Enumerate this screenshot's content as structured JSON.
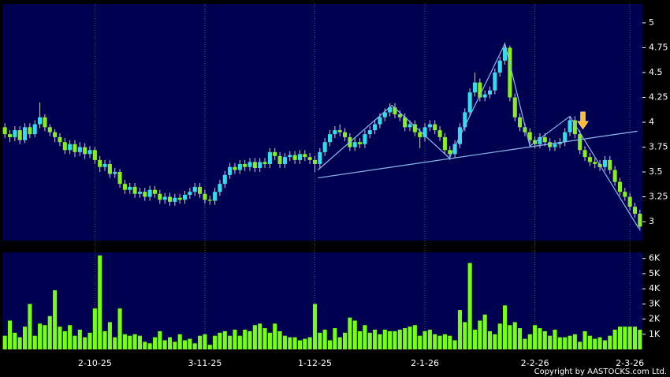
{
  "chart_data": [
    {
      "type": "candlestick",
      "categories": [
        null,
        null,
        null,
        null,
        null,
        null,
        null,
        null,
        null,
        null,
        null,
        null,
        null,
        null,
        null,
        null,
        null,
        null,
        "2-10-25",
        null,
        null,
        null,
        null,
        null,
        null,
        null,
        null,
        null,
        null,
        null,
        null,
        null,
        null,
        null,
        null,
        null,
        null,
        null,
        null,
        null,
        "3-11-25",
        null,
        null,
        null,
        null,
        null,
        null,
        null,
        null,
        null,
        null,
        null,
        null,
        null,
        null,
        null,
        null,
        null,
        null,
        null,
        null,
        null,
        "1-12-25",
        null,
        null,
        null,
        null,
        null,
        null,
        null,
        null,
        null,
        null,
        null,
        null,
        null,
        null,
        null,
        null,
        null,
        null,
        null,
        null,
        null,
        "2-1-26",
        null,
        null,
        null,
        null,
        null,
        null,
        null,
        null,
        null,
        null,
        null,
        null,
        null,
        null,
        null,
        null,
        null,
        null,
        null,
        null,
        null,
        "2-2-26",
        null,
        null,
        null,
        null,
        null,
        null,
        null,
        null,
        null,
        null,
        null,
        null,
        null,
        null,
        null,
        null,
        null,
        null,
        "2-3-26",
        null,
        null
      ],
      "open": [
        3.95,
        3.88,
        3.85,
        3.92,
        3.82,
        3.95,
        3.88,
        3.98,
        4.05,
        3.95,
        3.9,
        3.85,
        3.8,
        3.72,
        3.78,
        3.7,
        3.75,
        3.68,
        3.72,
        3.62,
        3.55,
        3.58,
        3.48,
        3.5,
        3.38,
        3.32,
        3.35,
        3.28,
        3.3,
        3.25,
        3.32,
        3.28,
        3.22,
        3.25,
        3.2,
        3.24,
        3.22,
        3.27,
        3.3,
        3.35,
        3.28,
        3.22,
        3.21,
        3.3,
        3.38,
        3.47,
        3.55,
        3.52,
        3.58,
        3.55,
        3.6,
        3.54,
        3.6,
        3.58,
        3.7,
        3.66,
        3.58,
        3.65,
        3.67,
        3.62,
        3.68,
        3.65,
        3.62,
        3.58,
        3.7,
        3.8,
        3.88,
        3.92,
        3.9,
        3.85,
        3.75,
        3.8,
        3.78,
        3.88,
        3.92,
        3.98,
        4.05,
        4.1,
        4.15,
        4.08,
        4.05,
        3.95,
        3.98,
        3.9,
        3.85,
        3.95,
        3.98,
        3.92,
        3.85,
        3.72,
        3.68,
        3.78,
        3.95,
        4.1,
        4.3,
        4.4,
        4.25,
        4.28,
        4.32,
        4.5,
        4.62,
        4.75,
        4.25,
        4.05,
        3.95,
        3.9,
        3.82,
        3.78,
        3.85,
        3.8,
        3.75,
        3.78,
        3.8,
        3.9,
        4.02,
        3.88,
        3.72,
        3.65,
        3.6,
        3.58,
        3.55,
        3.62,
        3.52,
        3.4,
        3.3,
        3.25,
        3.15,
        3.08
      ],
      "high": [
        3.99,
        3.92,
        3.96,
        3.96,
        3.99,
        3.99,
        4.02,
        4.2,
        4.08,
        3.98,
        3.93,
        3.89,
        3.84,
        3.82,
        3.82,
        3.8,
        3.79,
        3.76,
        3.75,
        3.66,
        3.62,
        3.62,
        3.54,
        3.53,
        3.42,
        3.39,
        3.39,
        3.34,
        3.34,
        3.36,
        3.36,
        3.32,
        3.29,
        3.29,
        3.28,
        3.28,
        3.31,
        3.34,
        3.39,
        3.39,
        3.32,
        3.26,
        3.34,
        3.42,
        3.51,
        3.59,
        3.59,
        3.62,
        3.62,
        3.64,
        3.64,
        3.64,
        3.64,
        3.74,
        3.74,
        3.7,
        3.69,
        3.71,
        3.71,
        3.72,
        3.72,
        3.69,
        3.66,
        3.74,
        3.84,
        3.92,
        3.96,
        3.98,
        3.94,
        3.89,
        3.84,
        3.84,
        3.92,
        3.96,
        4.02,
        4.09,
        4.14,
        4.19,
        4.19,
        4.12,
        4.09,
        4.02,
        4.02,
        3.94,
        3.99,
        4.02,
        4.02,
        3.96,
        3.89,
        3.76,
        3.82,
        3.99,
        4.14,
        4.34,
        4.5,
        4.44,
        4.32,
        4.36,
        4.54,
        4.66,
        4.8,
        4.77,
        4.29,
        4.09,
        3.99,
        3.94,
        3.86,
        3.89,
        3.89,
        3.84,
        3.82,
        3.84,
        3.94,
        4.06,
        4.06,
        3.92,
        3.76,
        3.69,
        3.64,
        3.62,
        3.66,
        3.66,
        3.56,
        3.44,
        3.34,
        3.29,
        3.19,
        3.12
      ],
      "low": [
        3.84,
        3.8,
        3.81,
        3.78,
        3.79,
        3.84,
        3.85,
        3.94,
        3.91,
        3.86,
        3.8,
        3.76,
        3.68,
        3.68,
        3.65,
        3.66,
        3.63,
        3.64,
        3.58,
        3.5,
        3.51,
        3.44,
        3.44,
        3.34,
        3.28,
        3.28,
        3.24,
        3.24,
        3.21,
        3.21,
        3.24,
        3.18,
        3.18,
        3.16,
        3.16,
        3.18,
        3.18,
        3.23,
        3.26,
        3.24,
        3.18,
        3.17,
        3.17,
        3.26,
        3.34,
        3.43,
        3.48,
        3.48,
        3.51,
        3.51,
        3.5,
        3.5,
        3.54,
        3.54,
        3.62,
        3.54,
        3.54,
        3.61,
        3.58,
        3.58,
        3.61,
        3.58,
        3.5,
        3.54,
        3.66,
        3.76,
        3.84,
        3.86,
        3.81,
        3.71,
        3.71,
        3.74,
        3.74,
        3.84,
        3.88,
        3.94,
        4.01,
        4.06,
        4.04,
        4.01,
        3.91,
        3.91,
        3.86,
        3.74,
        3.81,
        3.91,
        3.88,
        3.81,
        3.68,
        3.62,
        3.64,
        3.74,
        3.91,
        4.06,
        4.26,
        4.21,
        4.21,
        4.24,
        4.28,
        4.46,
        4.58,
        4.21,
        4.01,
        3.91,
        3.86,
        3.78,
        3.74,
        3.74,
        3.76,
        3.71,
        3.71,
        3.74,
        3.76,
        3.86,
        3.84,
        3.68,
        3.61,
        3.56,
        3.54,
        3.51,
        3.51,
        3.48,
        3.36,
        3.26,
        3.21,
        3.11,
        3.04,
        2.91
      ],
      "close": [
        3.88,
        3.85,
        3.92,
        3.82,
        3.95,
        3.88,
        3.98,
        4.05,
        3.95,
        3.9,
        3.85,
        3.8,
        3.72,
        3.78,
        3.7,
        3.75,
        3.68,
        3.72,
        3.62,
        3.55,
        3.58,
        3.48,
        3.5,
        3.38,
        3.32,
        3.35,
        3.28,
        3.3,
        3.25,
        3.32,
        3.28,
        3.22,
        3.25,
        3.2,
        3.24,
        3.22,
        3.27,
        3.3,
        3.35,
        3.28,
        3.22,
        3.21,
        3.3,
        3.38,
        3.47,
        3.55,
        3.52,
        3.58,
        3.55,
        3.6,
        3.54,
        3.6,
        3.58,
        3.7,
        3.66,
        3.58,
        3.65,
        3.67,
        3.62,
        3.68,
        3.65,
        3.62,
        3.58,
        3.7,
        3.8,
        3.88,
        3.92,
        3.9,
        3.85,
        3.75,
        3.8,
        3.78,
        3.88,
        3.92,
        3.98,
        4.05,
        4.1,
        4.15,
        4.08,
        4.05,
        3.95,
        3.98,
        3.9,
        3.85,
        3.95,
        3.98,
        3.92,
        3.85,
        3.72,
        3.68,
        3.78,
        3.95,
        4.1,
        4.3,
        4.4,
        4.25,
        4.28,
        4.32,
        4.5,
        4.62,
        4.75,
        4.25,
        4.05,
        3.95,
        3.9,
        3.82,
        3.78,
        3.85,
        3.8,
        3.75,
        3.78,
        3.8,
        3.9,
        4.02,
        3.88,
        3.72,
        3.65,
        3.6,
        3.58,
        3.55,
        3.62,
        3.52,
        3.4,
        3.3,
        3.25,
        3.15,
        3.08,
        2.95
      ],
      "up_color": "#33ddee",
      "down_color": "#88ee22",
      "ylim": [
        2.81,
        5.19
      ],
      "yticks": [
        3,
        3.25,
        3.5,
        3.75,
        4,
        4.25,
        4.5,
        4.75,
        5
      ],
      "trendlines": [
        {
          "x": [
            62.6,
            126.5
          ],
          "y": [
            3.44,
            3.91
          ]
        },
        {
          "x": [
            62.6,
            77.4,
            88.9,
            100,
            105,
            113,
            126.8
          ],
          "y": [
            3.52,
            4.17,
            3.64,
            4.79,
            3.76,
            4.06,
            2.93
          ]
        }
      ],
      "trend_color": "#88bbee",
      "arrow": {
        "x": 115.6,
        "y": 3.93,
        "color": "#ffbb33"
      }
    },
    {
      "type": "bar",
      "values": [
        900,
        1900,
        1100,
        800,
        1500,
        3000,
        900,
        1700,
        1600,
        2200,
        3900,
        1500,
        1200,
        1600,
        900,
        1300,
        800,
        1100,
        2700,
        6200,
        1200,
        1800,
        800,
        2700,
        1000,
        900,
        1000,
        900,
        500,
        400,
        800,
        1200,
        600,
        800,
        500,
        1000,
        600,
        700,
        400,
        900,
        1000,
        300,
        900,
        1100,
        1200,
        900,
        1300,
        900,
        1300,
        1200,
        1600,
        1700,
        1400,
        1100,
        1700,
        1200,
        900,
        800,
        800,
        600,
        700,
        800,
        3000,
        1100,
        1300,
        600,
        1400,
        800,
        1100,
        2100,
        1900,
        1200,
        1600,
        1100,
        1300,
        1000,
        1300,
        1200,
        1200,
        1300,
        1400,
        1500,
        1600,
        900,
        1200,
        1300,
        1000,
        900,
        1000,
        900,
        600,
        2600,
        1800,
        5700,
        1300,
        1900,
        2300,
        1200,
        1000,
        1700,
        2900,
        1600,
        1800,
        1400,
        700,
        1000,
        1600,
        1400,
        1200,
        900,
        1300,
        800,
        800,
        900,
        1000,
        500,
        1200,
        900,
        700,
        800,
        600,
        900,
        1300,
        1500,
        1500,
        1500,
        1500,
        1300
      ],
      "color": "#77ff11",
      "ylim": [
        0,
        6400
      ],
      "yticks": [
        {
          "value": 1000,
          "label": "1K"
        },
        {
          "value": 2000,
          "label": "2K"
        },
        {
          "value": 3000,
          "label": "3K"
        },
        {
          "value": 4000,
          "label": "4K"
        },
        {
          "value": 5000,
          "label": "5K"
        },
        {
          "value": 6000,
          "label": "6K"
        }
      ]
    }
  ],
  "footer": {
    "copyright": "Copyright by AASTOCKS.com Ltd."
  }
}
